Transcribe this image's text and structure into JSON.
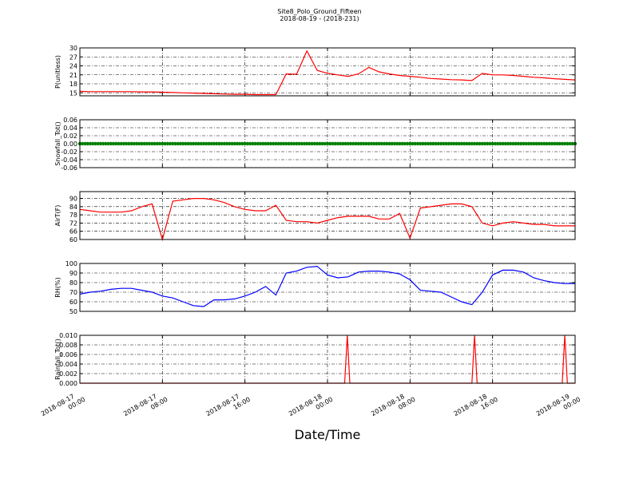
{
  "chart_data": {
    "type": "line",
    "title": "Site8_Polo_Ground_Fifteen",
    "subtitle": "2018-08-19 - (2018-231)",
    "xlabel": "Date/Time",
    "xlim": [
      "2018-08-17 00:00",
      "2018-08-19 00:00"
    ],
    "xticks": [
      "2018-08-17 00:00",
      "2018-08-17 08:00",
      "2018-08-17 16:00",
      "2018-08-18 00:00",
      "2018-08-18 08:00",
      "2018-08-18 16:00",
      "2018-08-19 00:00"
    ],
    "grid": true,
    "x": [
      "2018-08-17 00:00",
      "2018-08-17 01:00",
      "2018-08-17 02:00",
      "2018-08-17 03:00",
      "2018-08-17 04:00",
      "2018-08-17 05:00",
      "2018-08-17 06:00",
      "2018-08-17 07:00",
      "2018-08-17 08:00",
      "2018-08-17 09:00",
      "2018-08-17 10:00",
      "2018-08-17 11:00",
      "2018-08-17 12:00",
      "2018-08-17 13:00",
      "2018-08-17 14:00",
      "2018-08-17 15:00",
      "2018-08-17 16:00",
      "2018-08-17 17:00",
      "2018-08-17 18:00",
      "2018-08-17 19:00",
      "2018-08-17 20:00",
      "2018-08-17 21:00",
      "2018-08-17 22:00",
      "2018-08-17 23:00",
      "2018-08-18 00:00",
      "2018-08-18 01:00",
      "2018-08-18 02:00",
      "2018-08-18 03:00",
      "2018-08-18 04:00",
      "2018-08-18 05:00",
      "2018-08-18 06:00",
      "2018-08-18 07:00",
      "2018-08-18 08:00",
      "2018-08-18 09:00",
      "2018-08-18 10:00",
      "2018-08-18 11:00",
      "2018-08-18 12:00",
      "2018-08-18 13:00",
      "2018-08-18 14:00",
      "2018-08-18 15:00",
      "2018-08-18 16:00",
      "2018-08-18 17:00",
      "2018-08-18 18:00",
      "2018-08-18 19:00",
      "2018-08-18 20:00",
      "2018-08-18 21:00",
      "2018-08-18 22:00",
      "2018-08-18 23:00",
      "2018-08-19 00:00"
    ],
    "panels": [
      {
        "ylabel": "P(unitless)",
        "ylim": [
          14,
          30
        ],
        "yticks": [
          15,
          18,
          21,
          24,
          27,
          30
        ],
        "series": [
          {
            "color": "#ff0000",
            "values": [
              15.5,
              15.4,
              15.4,
              15.4,
              15.4,
              15.4,
              15.3,
              15.3,
              15.2,
              15.1,
              15,
              14.9,
              14.8,
              14.7,
              14.6,
              14.5,
              14.5,
              14.4,
              14.4,
              14.4,
              21.3,
              21.2,
              29,
              22.5,
              21.5,
              21,
              20.5,
              21.3,
              23.5,
              22,
              21.3,
              20.8,
              20.5,
              20.2,
              19.8,
              19.6,
              19.4,
              19.3,
              19.1,
              21.5,
              21,
              21,
              20.8,
              20.5,
              20.2,
              20,
              19.7,
              19.5,
              19.3
            ]
          }
        ]
      },
      {
        "ylabel": "Snowfall_Tot()",
        "ylim": [
          -0.06,
          0.06
        ],
        "yticks": [
          {
            "value": -0.06,
            "label": "-0.06"
          },
          {
            "value": -0.04,
            "label": "-0.04"
          },
          {
            "value": -0.02,
            "label": "-0.02"
          },
          {
            "value": 0,
            "label": "0.00"
          },
          {
            "value": 0.02,
            "label": "0.02"
          },
          {
            "value": 0.04,
            "label": "0.04"
          },
          {
            "value": 0.06,
            "label": "0.06"
          }
        ],
        "series": [
          {
            "color": "#008000",
            "markers": true,
            "values": [
              0,
              0,
              0,
              0,
              0,
              0,
              0,
              0,
              0,
              0,
              0,
              0,
              0,
              0,
              0,
              0,
              0,
              0,
              0,
              0,
              0,
              0,
              0,
              0,
              0,
              0,
              0,
              0,
              0,
              0,
              0,
              0,
              0,
              0,
              0,
              0,
              0,
              0,
              0,
              0,
              0,
              0,
              0,
              0,
              0,
              0,
              0,
              0,
              0
            ]
          }
        ]
      },
      {
        "ylabel": "AirT(F)",
        "ylim": [
          60,
          95
        ],
        "yticks": [
          60,
          66,
          72,
          78,
          84,
          90
        ],
        "series": [
          {
            "color": "#ff0000",
            "values": [
              82,
              81,
              80,
              80,
              80,
              81,
              84,
              86,
              60,
              88,
              89,
              90,
              90,
              89,
              87,
              84,
              82,
              81,
              81,
              85,
              74,
              73,
              73,
              72,
              74,
              76,
              77,
              77,
              77,
              75,
              75,
              79,
              61,
              83,
              84,
              85,
              86,
              86,
              84,
              72,
              70,
              72,
              73,
              72,
              71,
              71,
              70,
              70,
              70
            ]
          }
        ]
      },
      {
        "ylabel": "RH(%)",
        "ylim": [
          50,
          100
        ],
        "yticks": [
          50,
          60,
          70,
          80,
          90,
          100
        ],
        "series": [
          {
            "color": "#0000ff",
            "values": [
              68,
              70,
              71,
              73,
              74,
              74,
              72,
              70,
              66,
              64,
              60,
              56,
              55,
              62,
              62,
              63,
              66,
              70,
              76,
              67,
              90,
              92,
              96,
              97,
              88,
              85,
              86,
              91,
              92,
              92,
              91,
              89,
              83,
              72,
              71,
              70,
              65,
              60,
              57,
              70,
              88,
              93,
              93,
              91,
              85,
              82,
              80,
              79,
              79
            ]
          }
        ]
      },
      {
        "ylabel": "Rainfall_Tot()",
        "ylim": [
          0,
          0.01
        ],
        "yticks": [
          {
            "value": 0,
            "label": "0.000"
          },
          {
            "value": 0.002,
            "label": "0.002"
          },
          {
            "value": 0.004,
            "label": "0.004"
          },
          {
            "value": 0.006,
            "label": "0.006"
          },
          {
            "value": 0.008,
            "label": "0.008"
          },
          {
            "value": 0.01,
            "label": "0.010"
          }
        ],
        "x": [
          "2018-08-17 00:00",
          "2018-08-18 01:40",
          "2018-08-18 01:55",
          "2018-08-18 02:10",
          "2018-08-18 14:00",
          "2018-08-18 14:15",
          "2018-08-18 14:30",
          "2018-08-18 22:45",
          "2018-08-18 23:00",
          "2018-08-18 23:15",
          "2018-08-19 00:00"
        ],
        "series": [
          {
            "color": "#ff0000",
            "values": [
              0,
              0,
              0.01,
              0,
              0,
              0.01,
              0,
              0,
              0.01,
              0,
              0
            ]
          }
        ]
      }
    ]
  }
}
